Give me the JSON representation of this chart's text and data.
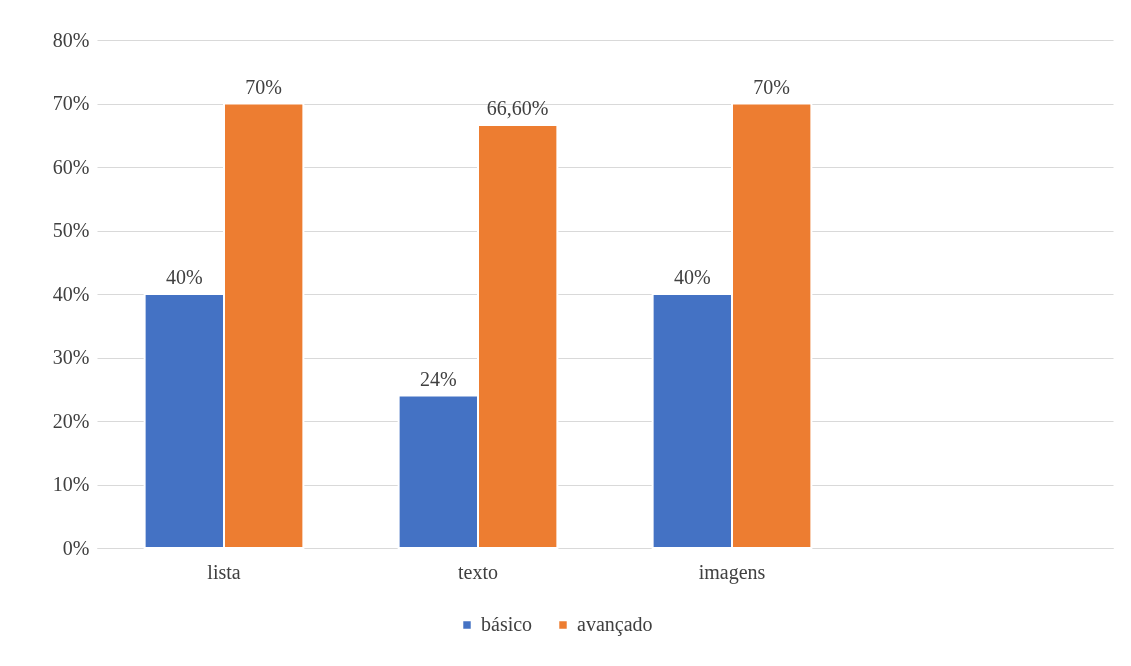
{
  "chart_data": {
    "type": "bar",
    "categories": [
      "lista",
      "texto",
      "imagens",
      null
    ],
    "series": [
      {
        "name": "básico",
        "color": "#4472c4",
        "values": [
          40,
          24,
          40,
          null
        ],
        "value_labels": [
          "40%",
          "24%",
          "40%",
          null
        ]
      },
      {
        "name": "avançado",
        "color": "#ed7d31",
        "values": [
          70,
          66.6,
          70,
          null
        ],
        "value_labels": [
          "70%",
          "66,60%",
          "70%",
          null
        ]
      }
    ],
    "ylim": [
      0,
      80
    ],
    "yticks": [
      {
        "value": 0,
        "label": "0%"
      },
      {
        "value": 10,
        "label": "10%"
      },
      {
        "value": 20,
        "label": "20%"
      },
      {
        "value": 30,
        "label": "30%"
      },
      {
        "value": 40,
        "label": "40%"
      },
      {
        "value": 50,
        "label": "50%"
      },
      {
        "value": 60,
        "label": "60%"
      },
      {
        "value": 70,
        "label": "70%"
      },
      {
        "value": 80,
        "label": "80%"
      }
    ],
    "grid": "y",
    "legend": "bottom"
  }
}
